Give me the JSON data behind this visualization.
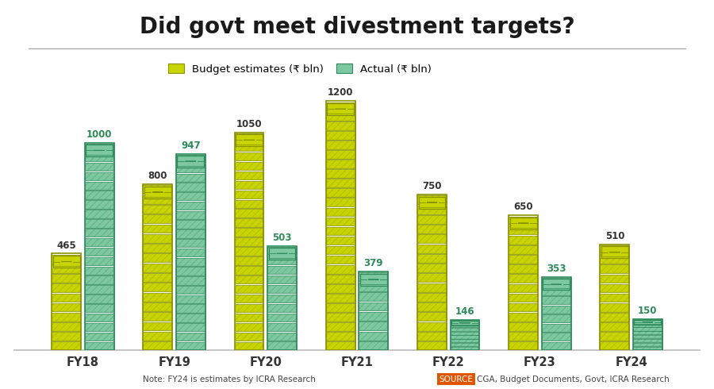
{
  "title": "Did govt meet divestment targets?",
  "categories": [
    "FY18",
    "FY19",
    "FY20",
    "FY21",
    "FY22",
    "FY23",
    "FY24"
  ],
  "budget": [
    465,
    800,
    1050,
    1200,
    750,
    650,
    510
  ],
  "actual": [
    1000,
    947,
    503,
    379,
    146,
    353,
    150
  ],
  "budget_color": "#c8d400",
  "budget_color_dark": "#8a9200",
  "actual_color": "#7dc8a0",
  "actual_color_dark": "#2e8a5a",
  "budget_label": "Budget estimates (₹ bln)",
  "actual_label": "Actual (₹ bln)",
  "note": "Note: FY24 is estimates by ICRA Research",
  "source_label": "SOURCE",
  "source_text": "CGA, Budget Documents, Govt, ICRA Research",
  "background": "#ffffff",
  "ylim_max": 1350,
  "budget_val_color": "#333333",
  "actual_val_color": "#2e8a5a"
}
